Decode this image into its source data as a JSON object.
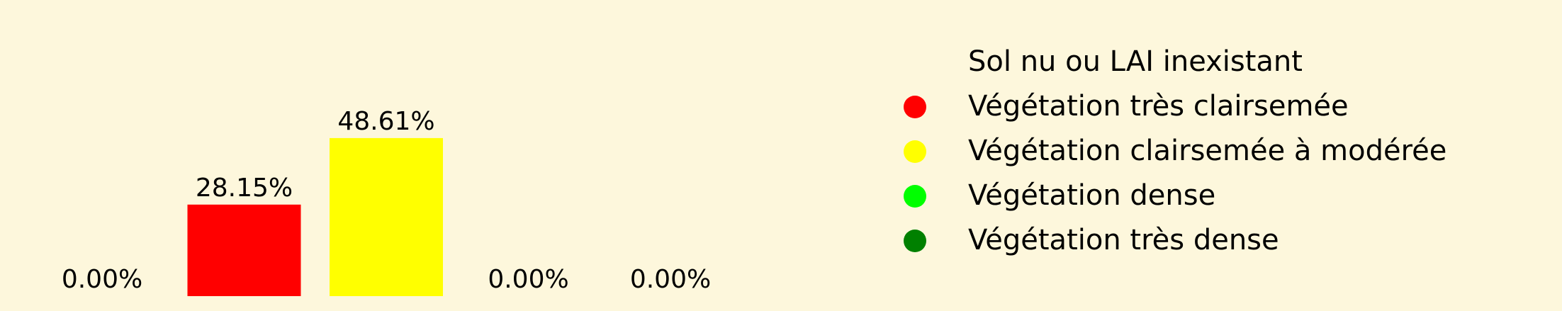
{
  "chart_data": {
    "type": "bar",
    "categories": [
      "Sol nu ou LAI inexistant",
      "Végétation très clairsemée",
      "Végétation clairsemée à modérée",
      "Végétation dense",
      "Végétation très dense"
    ],
    "values": [
      0.0,
      28.15,
      48.61,
      0.0,
      0.0
    ],
    "value_labels": [
      "0.00%",
      "28.15%",
      "48.61%",
      "0.00%",
      "0.00%"
    ],
    "colors": [
      "#fdf7dc",
      "#ff0000",
      "#ffff00",
      "#00ff00",
      "#008000"
    ],
    "background": "#fdf7dc",
    "legend_placement": "right",
    "axes_visible": false,
    "grid": false,
    "title": "",
    "xlabel": "",
    "ylabel": ""
  }
}
